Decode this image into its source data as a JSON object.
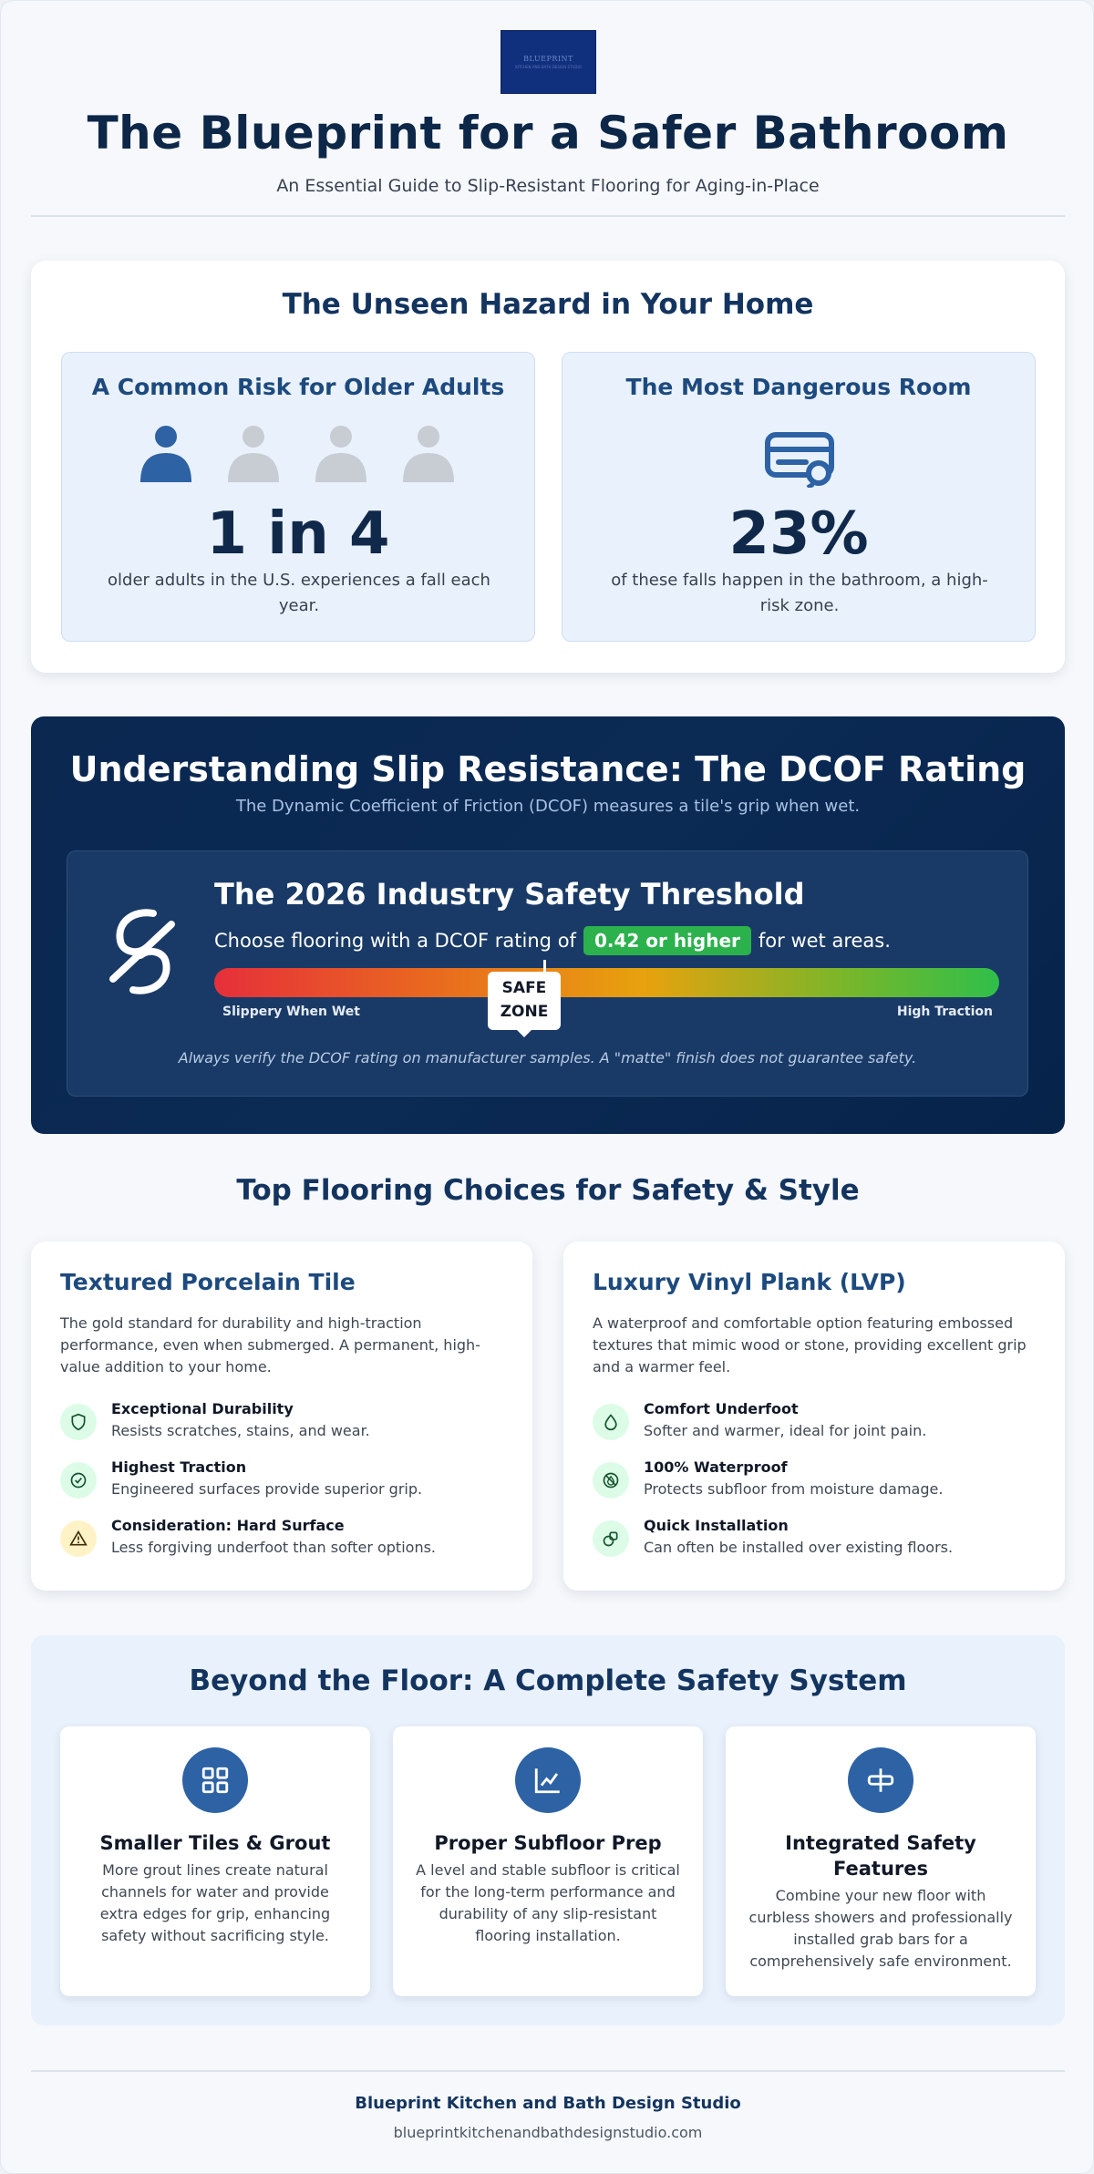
{
  "header": {
    "logo_text": "BLUEPRINT",
    "logo_subtext": "KITCHEN AND BATH DESIGN STUDIO",
    "title": "The Blueprint for a Safer Bathroom",
    "subtitle": "An Essential Guide to Slip-Resistant Flooring for Aging-in-Place"
  },
  "hazard": {
    "title": "The Unseen Hazard in Your Home",
    "stats": [
      {
        "heading": "A Common Risk for Older Adults",
        "value": "1 in 4",
        "description": "older adults in the U.S. experiences a fall each year.",
        "icon": "person-icon",
        "highlighted_count": 1,
        "total_count": 4
      },
      {
        "heading": "The Most Dangerous Room",
        "value": "23%",
        "description": "of these falls happen in the bathroom, a high-risk zone.",
        "icon": "bathtub-icon"
      }
    ]
  },
  "dcof": {
    "title": "Understanding Slip Resistance: The DCOF Rating",
    "subtitle": "The Dynamic Coefficient of Friction (DCOF) measures a tile's grip when wet.",
    "threshold_title": "The 2026 Industry Safety Threshold",
    "line_prefix": "Choose flooring with a DCOF rating of",
    "threshold_value": "0.42 or higher",
    "line_suffix": "for wet areas.",
    "scale_left_label": "Slippery When Wet",
    "scale_right_label": "High Traction",
    "marker_label_1": "SAFE",
    "marker_label_2": "ZONE",
    "marker_position": 0.42,
    "note": "Always verify the DCOF rating on manufacturer samples. A \"matte\" finish does not guarantee safety.",
    "icon": "broken-chain-icon"
  },
  "flooring": {
    "title": "Top Flooring Choices for Safety & Style",
    "options": [
      {
        "name": "Textured Porcelain Tile",
        "intro": "The gold standard for durability and high-traction performance, even when submerged. A permanent, high-value addition to your home.",
        "features": [
          {
            "title": "Exceptional Durability",
            "text": "Resists scratches, stains, and wear.",
            "icon": "shield-icon",
            "tone": "green"
          },
          {
            "title": "Highest Traction",
            "text": "Engineered surfaces provide superior grip.",
            "icon": "check-circle-icon",
            "tone": "green"
          },
          {
            "title": "Consideration: Hard Surface",
            "text": "Less forgiving underfoot than softer options.",
            "icon": "warning-icon",
            "tone": "yellow"
          }
        ]
      },
      {
        "name": "Luxury Vinyl Plank (LVP)",
        "intro": "A waterproof and comfortable option featuring embossed textures that mimic wood or stone, providing excellent grip and a warmer feel.",
        "features": [
          {
            "title": "Comfort Underfoot",
            "text": "Softer and warmer, ideal for joint pain.",
            "icon": "droplet-icon",
            "tone": "green"
          },
          {
            "title": "100% Waterproof",
            "text": "Protects subfloor from moisture damage.",
            "icon": "no-water-icon",
            "tone": "green"
          },
          {
            "title": "Quick Installation",
            "text": "Can often be installed over existing floors.",
            "icon": "pieces-icon",
            "tone": "green"
          }
        ]
      }
    ]
  },
  "system": {
    "title": "Beyond the Floor: A Complete Safety System",
    "cards": [
      {
        "title": "Smaller Tiles & Grout",
        "text": "More grout lines create natural channels for water and provide extra edges for grip, enhancing safety without sacrificing style.",
        "icon": "grid-icon"
      },
      {
        "title": "Proper Subfloor Prep",
        "text": "A level and stable subfloor is critical for the long-term performance and durability of any slip-resistant flooring installation.",
        "icon": "chart-line-icon"
      },
      {
        "title": "Integrated Safety Features",
        "text": "Combine your new floor with curbless showers and professionally installed grab bars for a comprehensively safe environment.",
        "icon": "grab-bar-icon"
      }
    ]
  },
  "footer": {
    "company": "Blueprint Kitchen and Bath Design Studio",
    "url": "blueprintkitchenandbathdesignstudio.com"
  },
  "colors": {
    "navy": "#0d2748",
    "accent_blue": "#2d62a4",
    "success_green": "#2bb24c",
    "light_panel": "#e9f1fc"
  }
}
